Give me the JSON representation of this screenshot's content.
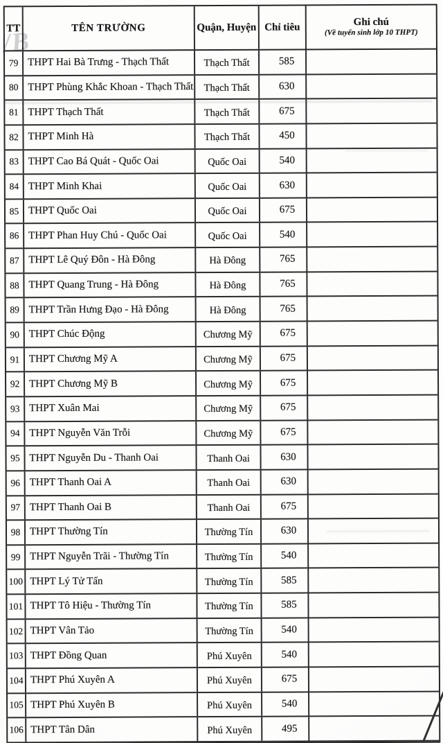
{
  "doc": {
    "watermark": "/B",
    "colors": {
      "paper": "#fdfdfc",
      "ink": "#171717",
      "border": "#2b2b2b",
      "watermark_gray": "#9696a0"
    },
    "header": {
      "col_tt": "TT",
      "col_name": "TÊN TRƯỜNG",
      "col_district": "Quận, Huyện",
      "col_quota": "Chỉ tiêu",
      "col_note": "Ghi chú",
      "col_note_sub": "(Về tuyển sinh lớp 10 THPT)"
    },
    "rows": [
      {
        "tt": "79",
        "name": "THPT Hai Bà Trưng - Thạch Thất",
        "district": "Thạch Thất",
        "quota": "585",
        "note": ""
      },
      {
        "tt": "80",
        "name": "THPT Phùng Khắc Khoan - Thạch Thất",
        "district": "Thạch Thất",
        "quota": "630",
        "note": ""
      },
      {
        "tt": "81",
        "name": "THPT Thạch Thất",
        "district": "Thạch Thất",
        "quota": "675",
        "note": ""
      },
      {
        "tt": "82",
        "name": "THPT Minh Hà",
        "district": "Thạch Thất",
        "quota": "450",
        "note": ""
      },
      {
        "tt": "83",
        "name": "THPT Cao Bá Quát - Quốc Oai",
        "district": "Quốc Oai",
        "quota": "540",
        "note": ""
      },
      {
        "tt": "84",
        "name": "THPT Minh Khai",
        "district": "Quốc Oai",
        "quota": "630",
        "note": ""
      },
      {
        "tt": "85",
        "name": "THPT Quốc Oai",
        "district": "Quốc Oai",
        "quota": "675",
        "note": ""
      },
      {
        "tt": "86",
        "name": "THPT Phan Huy Chú - Quốc Oai",
        "district": "Quốc Oai",
        "quota": "540",
        "note": ""
      },
      {
        "tt": "87",
        "name": "THPT Lê Quý Đôn - Hà Đông",
        "district": "Hà Đông",
        "quota": "765",
        "note": ""
      },
      {
        "tt": "88",
        "name": "THPT Quang Trung - Hà Đông",
        "district": "Hà Đông",
        "quota": "765",
        "note": ""
      },
      {
        "tt": "89",
        "name": "THPT Trần Hưng Đạo - Hà Đông",
        "district": "Hà Đông",
        "quota": "765",
        "note": ""
      },
      {
        "tt": "90",
        "name": "THPT Chúc Động",
        "district": "Chương Mỹ",
        "quota": "675",
        "note": ""
      },
      {
        "tt": "91",
        "name": "THPT Chương Mỹ A",
        "district": "Chương Mỹ",
        "quota": "675",
        "note": ""
      },
      {
        "tt": "92",
        "name": "THPT Chương Mỹ B",
        "district": "Chương Mỹ",
        "quota": "675",
        "note": ""
      },
      {
        "tt": "93",
        "name": "THPT Xuân Mai",
        "district": "Chương Mỹ",
        "quota": "675",
        "note": ""
      },
      {
        "tt": "94",
        "name": "THPT Nguyễn Văn Trỗi",
        "district": "Chương Mỹ",
        "quota": "675",
        "note": ""
      },
      {
        "tt": "95",
        "name": "THPT Nguyễn Du - Thanh Oai",
        "district": "Thanh Oai",
        "quota": "630",
        "note": ""
      },
      {
        "tt": "96",
        "name": "THPT Thanh Oai A",
        "district": "Thanh Oai",
        "quota": "630",
        "note": ""
      },
      {
        "tt": "97",
        "name": "THPT Thanh Oai B",
        "district": "Thanh Oai",
        "quota": "675",
        "note": ""
      },
      {
        "tt": "98",
        "name": "THPT Thường Tín",
        "district": "Thường Tín",
        "quota": "630",
        "note": ""
      },
      {
        "tt": "99",
        "name": "THPT Nguyễn Trãi - Thường Tín",
        "district": "Thường Tín",
        "quota": "540",
        "note": ""
      },
      {
        "tt": "100",
        "name": "THPT Lý Tử Tấn",
        "district": "Thường Tín",
        "quota": "585",
        "note": ""
      },
      {
        "tt": "101",
        "name": "THPT Tô Hiệu - Thường Tín",
        "district": "Thường Tín",
        "quota": "585",
        "note": ""
      },
      {
        "tt": "102",
        "name": "THPT Vân Tảo",
        "district": "Thường Tín",
        "quota": "540",
        "note": ""
      },
      {
        "tt": "103",
        "name": "THPT Đồng Quan",
        "district": "Phú Xuyên",
        "quota": "540",
        "note": ""
      },
      {
        "tt": "104",
        "name": "THPT Phú Xuyên A",
        "district": "Phú Xuyên",
        "quota": "675",
        "note": ""
      },
      {
        "tt": "105",
        "name": "THPT Phú Xuyên B",
        "district": "Phú Xuyên",
        "quota": "540",
        "note": ""
      },
      {
        "tt": "106",
        "name": "THPT Tân Dân",
        "district": "Phú Xuyên",
        "quota": "495",
        "note": ""
      }
    ]
  }
}
